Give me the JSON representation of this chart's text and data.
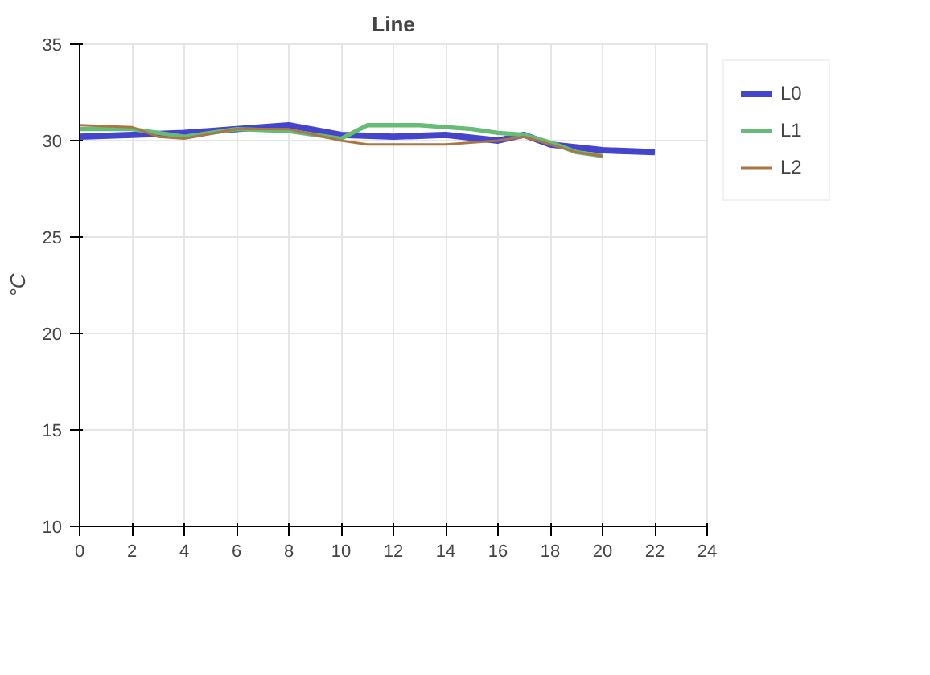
{
  "chart_data": {
    "type": "line",
    "title": "Line",
    "ylabel": "°C",
    "xlim": [
      0,
      24
    ],
    "xticks": [
      0,
      2,
      4,
      6,
      8,
      10,
      12,
      14,
      16,
      18,
      20,
      22,
      24
    ],
    "ylim": [
      10,
      35
    ],
    "yticks": [
      10,
      15,
      20,
      25,
      30,
      35
    ],
    "grid": true,
    "legend": "top right",
    "line_style": "solid",
    "marker": "none",
    "series": [
      {
        "name": "L0",
        "color": "#4444cc",
        "x": [
          0,
          2,
          4,
          6,
          8,
          10,
          12,
          14,
          16,
          17,
          18,
          20,
          22
        ],
        "values": [
          30.2,
          30.3,
          30.4,
          30.6,
          30.8,
          30.3,
          30.2,
          30.3,
          30.0,
          30.3,
          29.8,
          29.5,
          29.4
        ]
      },
      {
        "name": "L1",
        "color": "#66bb77",
        "x": [
          0,
          2,
          3,
          4,
          6,
          8,
          10,
          11,
          13,
          15,
          16,
          17,
          18,
          19,
          20
        ],
        "values": [
          30.6,
          30.6,
          30.4,
          30.2,
          30.6,
          30.5,
          30.1,
          30.8,
          30.8,
          30.6,
          30.4,
          30.3,
          29.9,
          29.4,
          29.2
        ]
      },
      {
        "name": "L2",
        "color": "#aa7744",
        "x": [
          0,
          2,
          3,
          4,
          6,
          8,
          10,
          11,
          14,
          16,
          17,
          19,
          20
        ],
        "values": [
          30.8,
          30.7,
          30.2,
          30.1,
          30.6,
          30.6,
          30.0,
          29.8,
          29.8,
          30.0,
          30.2,
          29.4,
          29.2
        ]
      }
    ]
  }
}
